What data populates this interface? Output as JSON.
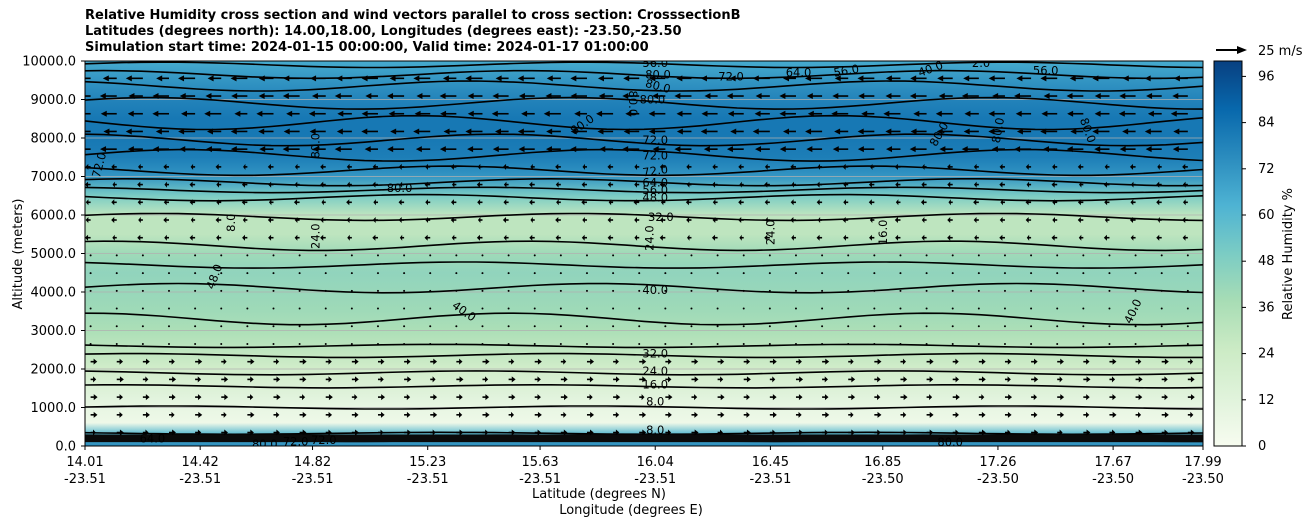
{
  "chart_data": {
    "type": "heatmap",
    "title_lines": [
      "Relative Humidity cross section and wind vectors parallel to cross section: CrosssectionB",
      "Latitudes (degrees north): 14.00,18.00, Longitudes (degrees east): -23.50,-23.50",
      "Simulation start time: 2024-01-15 00:00:00, Valid time: 2024-01-17 01:00:00"
    ],
    "ylabel": "Altitude (meters)",
    "xlabel_lat": "Latitude (degrees N)",
    "xlabel_lon": "Longitude (degrees E)",
    "ylim": [
      0,
      10000
    ],
    "y_ticks": [
      "0.0",
      "1000.0",
      "2000.0",
      "3000.0",
      "4000.0",
      "5000.0",
      "6000.0",
      "7000.0",
      "8000.0",
      "9000.0",
      "10000.0"
    ],
    "y_tick_values": [
      0,
      1000,
      2000,
      3000,
      4000,
      5000,
      6000,
      7000,
      8000,
      9000,
      10000
    ],
    "x_ticks": [
      {
        "lat": "14.01",
        "lon": "-23.51"
      },
      {
        "lat": "14.42",
        "lon": "-23.51"
      },
      {
        "lat": "14.82",
        "lon": "-23.51"
      },
      {
        "lat": "15.23",
        "lon": "-23.51"
      },
      {
        "lat": "15.63",
        "lon": "-23.51"
      },
      {
        "lat": "16.04",
        "lon": "-23.51"
      },
      {
        "lat": "16.45",
        "lon": "-23.51"
      },
      {
        "lat": "16.85",
        "lon": "-23.50"
      },
      {
        "lat": "17.26",
        "lon": "-23.50"
      },
      {
        "lat": "17.67",
        "lon": "-23.50"
      },
      {
        "lat": "17.99",
        "lon": "-23.50"
      }
    ],
    "grid": "horizontal",
    "colorbar": {
      "label": "Relative Humidity %",
      "ticks": [
        "0",
        "12",
        "24",
        "36",
        "48",
        "60",
        "72",
        "84",
        "96"
      ],
      "tick_values": [
        0,
        12,
        24,
        36,
        48,
        60,
        72,
        84,
        96
      ],
      "range": [
        0,
        100
      ],
      "colormap": "GnBu",
      "colors": [
        "#f7fcf0",
        "#e0f3db",
        "#ccebc5",
        "#a8ddb5",
        "#7bccc4",
        "#4eb3d3",
        "#2b8cbe",
        "#0868ac",
        "#084081"
      ]
    },
    "quiver_key": {
      "label": "25 m/s",
      "speed": 25
    },
    "rh_profile": {
      "altitude": [
        0,
        300,
        600,
        1000,
        1500,
        2000,
        2500,
        3000,
        3500,
        4000,
        4500,
        5000,
        5500,
        6000,
        6500,
        7000,
        7500,
        8000,
        8500,
        9000,
        9500,
        10000
      ],
      "rh": [
        75,
        60,
        5,
        8,
        15,
        22,
        30,
        36,
        40,
        42,
        44,
        40,
        30,
        30,
        50,
        72,
        80,
        82,
        82,
        78,
        72,
        65
      ]
    },
    "contour_labels": [
      {
        "text": "80.0",
        "lat": 15.13,
        "alt": 6700,
        "rot": 0
      },
      {
        "text": "40.0",
        "lat": 16.04,
        "alt": 4050,
        "rot": 0
      },
      {
        "text": "32.0",
        "lat": 16.04,
        "alt": 2400,
        "rot": 0
      },
      {
        "text": "24.0",
        "lat": 16.04,
        "alt": 1950,
        "rot": 0
      },
      {
        "text": "16.0",
        "lat": 16.04,
        "alt": 1600,
        "rot": 0
      },
      {
        "text": "8.0",
        "lat": 16.04,
        "alt": 1150,
        "rot": 0
      },
      {
        "text": "8.0",
        "lat": 16.04,
        "alt": 420,
        "rot": 0
      },
      {
        "text": "72.0",
        "lat": 16.04,
        "alt": 7950,
        "rot": 0
      },
      {
        "text": "72.0",
        "lat": 16.04,
        "alt": 7550,
        "rot": 0
      },
      {
        "text": "72.0",
        "lat": 16.04,
        "alt": 7150,
        "rot": -8
      },
      {
        "text": "64.0",
        "lat": 16.04,
        "alt": 6850,
        "rot": 0
      },
      {
        "text": "56.0",
        "lat": 16.04,
        "alt": 6650,
        "rot": 0
      },
      {
        "text": "48.0",
        "lat": 16.04,
        "alt": 6450,
        "rot": 0
      },
      {
        "text": "32.0",
        "lat": 16.06,
        "alt": 5950,
        "rot": 0
      },
      {
        "text": "24.0",
        "lat": 16.45,
        "alt": 5550,
        "rot": -90
      },
      {
        "text": "16.0",
        "lat": 16.85,
        "alt": 5550,
        "rot": -90
      },
      {
        "text": "24.0",
        "lat": 16.02,
        "alt": 5400,
        "rot": -90
      },
      {
        "text": "24.0",
        "lat": 14.83,
        "alt": 5450,
        "rot": -90
      },
      {
        "text": "48.0",
        "lat": 14.47,
        "alt": 4400,
        "rot": -70
      },
      {
        "text": "40.0",
        "lat": 15.36,
        "alt": 3500,
        "rot": 35
      },
      {
        "text": "40.0",
        "lat": 17.74,
        "alt": 3500,
        "rot": -65
      },
      {
        "text": "80.0",
        "lat": 14.83,
        "alt": 7800,
        "rot": -90
      },
      {
        "text": "80.0",
        "lat": 15.96,
        "alt": 8900,
        "rot": 90
      },
      {
        "text": "80.0",
        "lat": 15.78,
        "alt": 8350,
        "rot": -35
      },
      {
        "text": "80.0",
        "lat": 16.05,
        "alt": 9350,
        "rot": 15
      },
      {
        "text": "80.0",
        "lat": 16.03,
        "alt": 9000,
        "rot": 0
      },
      {
        "text": "80.0",
        "lat": 16.05,
        "alt": 9650,
        "rot": 0
      },
      {
        "text": "72.0",
        "lat": 16.31,
        "alt": 9600,
        "rot": 0
      },
      {
        "text": "64.0",
        "lat": 16.55,
        "alt": 9700,
        "rot": 0
      },
      {
        "text": "56.0",
        "lat": 16.04,
        "alt": 9950,
        "rot": 0
      },
      {
        "text": "56.0",
        "lat": 16.72,
        "alt": 9750,
        "rot": -10
      },
      {
        "text": "40.0",
        "lat": 17.02,
        "alt": 9800,
        "rot": -20
      },
      {
        "text": "80.0",
        "lat": 17.05,
        "alt": 8100,
        "rot": -60
      },
      {
        "text": "80.0",
        "lat": 17.26,
        "alt": 8200,
        "rot": -80
      },
      {
        "text": "80.0",
        "lat": 17.58,
        "alt": 8200,
        "rot": 70
      },
      {
        "text": "72.0",
        "lat": 14.06,
        "alt": 7300,
        "rot": -75
      },
      {
        "text": "8.0",
        "lat": 14.53,
        "alt": 5800,
        "rot": -90
      },
      {
        "text": "80.0",
        "lat": 14.65,
        "alt": 50,
        "rot": 0
      },
      {
        "text": "72.0",
        "lat": 14.76,
        "alt": 120,
        "rot": 0
      },
      {
        "text": "72.0",
        "lat": 14.86,
        "alt": 150,
        "rot": 0
      },
      {
        "text": "80.0",
        "lat": 17.09,
        "alt": 100,
        "rot": 0
      },
      {
        "text": "64.0",
        "lat": 14.25,
        "alt": 200,
        "rot": 0
      },
      {
        "text": "2.0",
        "lat": 17.2,
        "alt": 9950,
        "rot": 0
      },
      {
        "text": "56.0",
        "lat": 17.43,
        "alt": 9750,
        "rot": 0
      }
    ],
    "wind_pattern": [
      {
        "alt_min": 0,
        "alt_max": 2600,
        "direction": "east",
        "speed_m_s": 5
      },
      {
        "alt_min": 2600,
        "alt_max": 5000,
        "direction": "calm",
        "speed_m_s": 1
      },
      {
        "alt_min": 5000,
        "alt_max": 7500,
        "direction": "west",
        "speed_m_s": 4
      },
      {
        "alt_min": 7500,
        "alt_max": 10000,
        "direction": "west",
        "speed_m_s": 12
      }
    ]
  }
}
